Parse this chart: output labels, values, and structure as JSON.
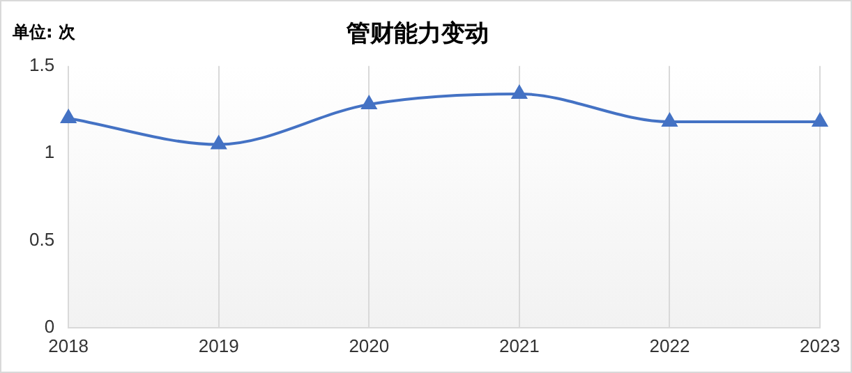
{
  "chart_data": {
    "type": "line",
    "title": "管财能力变动",
    "ylabel": "单位: 次",
    "categories": [
      "2018",
      "2019",
      "2020",
      "2021",
      "2022",
      "2023"
    ],
    "series": [
      {
        "color": "#4472c4",
        "values": [
          1.2,
          1.05,
          1.28,
          1.34,
          1.18,
          1.18
        ]
      }
    ],
    "ylim": [
      0,
      1.5
    ],
    "yticks": [
      0,
      0.5,
      1,
      1.5
    ],
    "grid": "x",
    "legend": false,
    "marker": "triangle",
    "line_style": "solid"
  }
}
